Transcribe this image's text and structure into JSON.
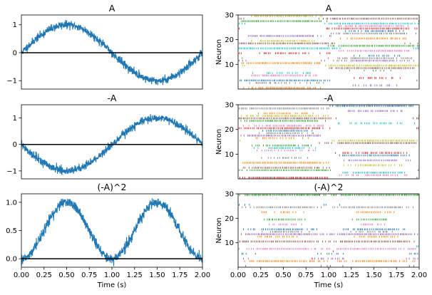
{
  "colors": {
    "signal_line": "#1f77b4",
    "zero_line": "#000000",
    "spikes": [
      "#1f77b4",
      "#ff7f0e",
      "#2ca02c",
      "#d62728",
      "#9467bd",
      "#8c564b",
      "#e377c2",
      "#7f7f7f",
      "#bcbd22",
      "#17becf"
    ]
  },
  "chart_data": [
    {
      "type": "line",
      "title": "A",
      "xlabel": "",
      "ylabel": "",
      "xlim": [
        0,
        2
      ],
      "ylim": [
        -1.3,
        1.35
      ],
      "yticks": [
        {
          "value": 1,
          "label": "1"
        },
        {
          "value": 0,
          "label": "0"
        },
        {
          "value": -1,
          "label": "−1"
        }
      ],
      "xticks": [],
      "series": [
        {
          "function": "sin(pi*t)",
          "x_range": [
            0,
            2
          ],
          "noise": 0.07
        }
      ],
      "hline": 0
    },
    {
      "type": "scatter",
      "title": "A",
      "xlabel": "",
      "ylabel": "Neuron",
      "xlim": [
        0,
        2
      ],
      "ylim": [
        30,
        0
      ],
      "yticks": [
        {
          "value": 10,
          "label": "10"
        },
        {
          "value": 20,
          "label": "20"
        },
        {
          "value": 30,
          "label": "30"
        }
      ],
      "xticks": [],
      "neurons": 30,
      "drive": "A"
    },
    {
      "type": "line",
      "title": "-A",
      "xlabel": "",
      "ylabel": "",
      "xlim": [
        0,
        2
      ],
      "ylim": [
        -1.3,
        1.5
      ],
      "yticks": [
        {
          "value": 1,
          "label": "1"
        },
        {
          "value": 0,
          "label": "0"
        },
        {
          "value": -1,
          "label": "−1"
        }
      ],
      "xticks": [],
      "series": [
        {
          "function": "-sin(pi*t)",
          "x_range": [
            0,
            2
          ],
          "noise": 0.07
        }
      ],
      "hline": 0
    },
    {
      "type": "scatter",
      "title": "-A",
      "xlabel": "",
      "ylabel": "Neuron",
      "xlim": [
        0,
        2
      ],
      "ylim": [
        30,
        0
      ],
      "yticks": [
        {
          "value": 10,
          "label": "10"
        },
        {
          "value": 20,
          "label": "20"
        },
        {
          "value": 30,
          "label": "30"
        }
      ],
      "xticks": [],
      "neurons": 30,
      "drive": "-A"
    },
    {
      "type": "line",
      "title": "(-A)^2",
      "xlabel": "Time (s)",
      "ylabel": "",
      "xlim": [
        0,
        2
      ],
      "ylim": [
        -0.15,
        1.15
      ],
      "yticks": [
        {
          "value": 1,
          "label": "1.0"
        },
        {
          "value": 0.5,
          "label": "0.5"
        },
        {
          "value": 0,
          "label": "0.0"
        }
      ],
      "xticks": [
        {
          "value": 0,
          "label": "0.00"
        },
        {
          "value": 0.25,
          "label": "0.25"
        },
        {
          "value": 0.5,
          "label": "0.50"
        },
        {
          "value": 0.75,
          "label": "0.75"
        },
        {
          "value": 1,
          "label": "1.00"
        },
        {
          "value": 1.25,
          "label": "1.25"
        },
        {
          "value": 1.5,
          "label": "1.50"
        },
        {
          "value": 1.75,
          "label": "1.75"
        },
        {
          "value": 2,
          "label": "2.00"
        }
      ],
      "series": [
        {
          "function": "sin(pi*t)^2",
          "x_range": [
            0,
            2
          ],
          "noise": 0.045
        }
      ],
      "hline": 0
    },
    {
      "type": "scatter",
      "title": "(-A)^2",
      "xlabel": "Time (s)",
      "ylabel": "Neuron",
      "xlim": [
        0,
        2
      ],
      "ylim": [
        30,
        0
      ],
      "yticks": [
        {
          "value": 10,
          "label": "10"
        },
        {
          "value": 20,
          "label": "20"
        },
        {
          "value": 30,
          "label": "30"
        }
      ],
      "xticks": [
        {
          "value": 0,
          "label": "0.00"
        },
        {
          "value": 0.25,
          "label": "0.25"
        },
        {
          "value": 0.5,
          "label": "0.50"
        },
        {
          "value": 0.75,
          "label": "0.75"
        },
        {
          "value": 1,
          "label": "1.00"
        },
        {
          "value": 1.25,
          "label": "1.25"
        },
        {
          "value": 1.5,
          "label": "1.50"
        },
        {
          "value": 1.75,
          "label": "1.75"
        },
        {
          "value": 2,
          "label": "2.00"
        }
      ],
      "neurons": 30,
      "drive": "(-A)^2"
    }
  ]
}
